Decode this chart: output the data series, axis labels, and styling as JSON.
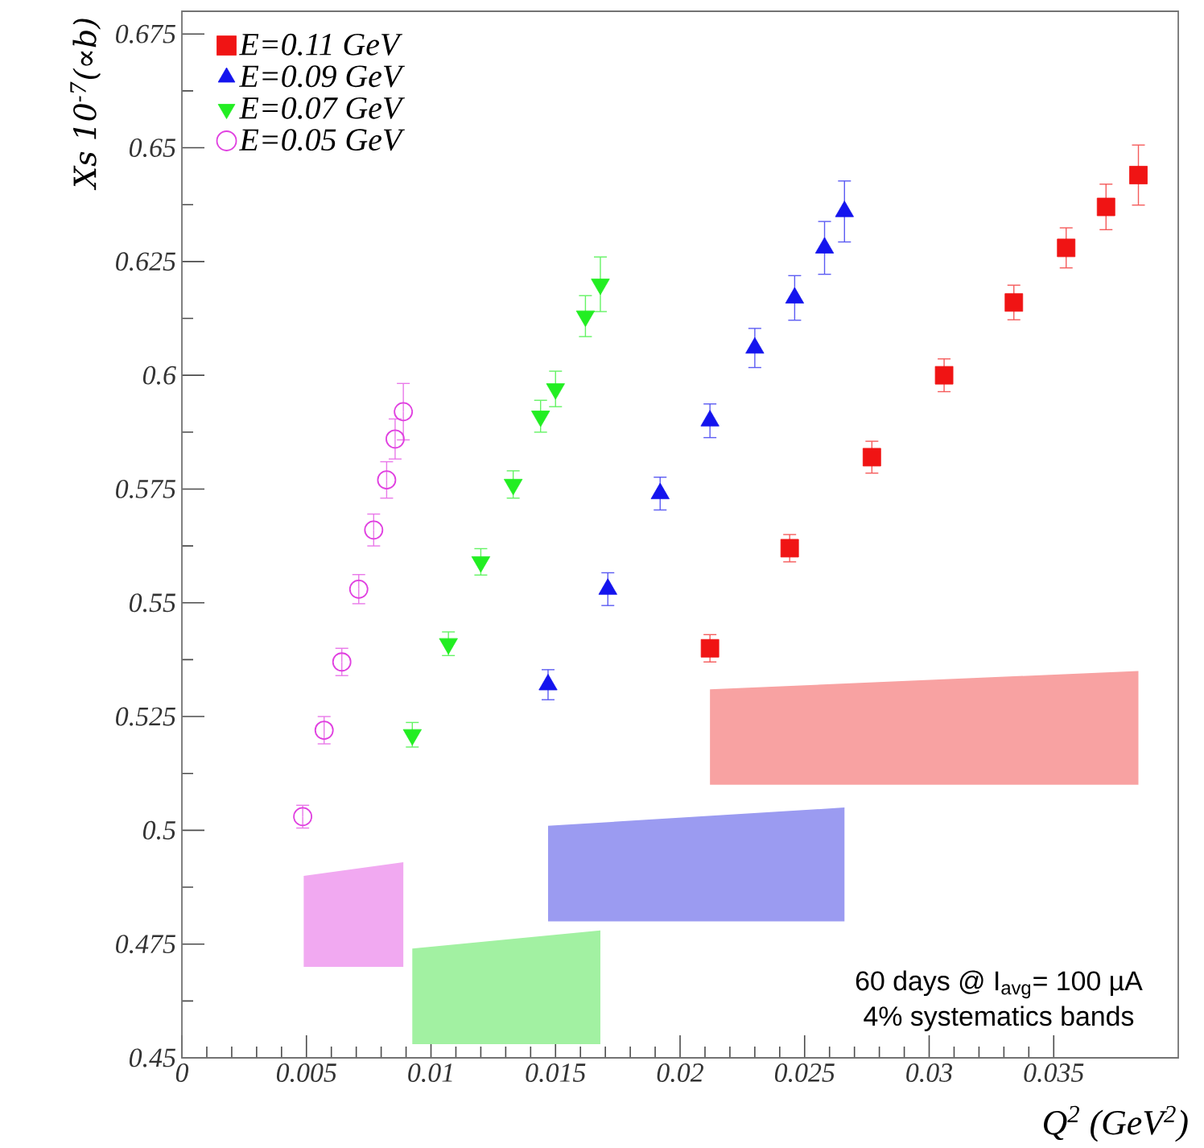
{
  "chart_data": {
    "type": "scatter",
    "ylabel": "Xs 10$^{-7}$(∝b)",
    "xlabel": "Q$^{2}$ (GeV$^{2}$)",
    "xlim": [
      0,
      0.04
    ],
    "xticks": [
      0,
      0.005,
      0.01,
      0.015,
      0.02,
      0.025,
      0.03,
      0.035
    ],
    "ylim": [
      0.45,
      0.68
    ],
    "yticks": [
      0.45,
      0.475,
      0.5,
      0.525,
      0.55,
      0.575,
      0.6,
      0.625,
      0.65,
      0.675
    ],
    "legend": "top left",
    "series": [
      {
        "type": "scatter",
        "name": "E=0.11 GeV",
        "color": "#f01414",
        "marker": "square",
        "x": [
          0.0212,
          0.0244,
          0.0277,
          0.0306,
          0.0334,
          0.0355,
          0.0371,
          0.0384
        ],
        "values": [
          0.54,
          0.562,
          0.582,
          0.6,
          0.616,
          0.628,
          0.637,
          0.644
        ],
        "errors": [
          0.003,
          0.003,
          0.0035,
          0.0036,
          0.0038,
          0.0044,
          0.005,
          0.0066
        ]
      },
      {
        "type": "scatter",
        "name": "E=0.09 GeV",
        "color": "#1414ee",
        "marker": "triangle",
        "x": [
          0.0147,
          0.0171,
          0.0192,
          0.0212,
          0.023,
          0.0246,
          0.0258,
          0.0266
        ],
        "values": [
          0.532,
          0.553,
          0.574,
          0.59,
          0.606,
          0.617,
          0.628,
          0.636
        ],
        "errors": [
          0.0033,
          0.0036,
          0.0036,
          0.0037,
          0.0043,
          0.0049,
          0.0058,
          0.0067
        ]
      },
      {
        "type": "scatter",
        "name": "E=0.07 GeV",
        "color": "#22ee22",
        "marker": "triangle-down",
        "x": [
          0.00925,
          0.0107,
          0.012,
          0.0133,
          0.0144,
          0.015,
          0.0162,
          0.0168
        ],
        "values": [
          0.521,
          0.541,
          0.559,
          0.576,
          0.591,
          0.597,
          0.613,
          0.62
        ],
        "errors": [
          0.0027,
          0.0026,
          0.0029,
          0.003,
          0.0035,
          0.0039,
          0.0045,
          0.006
        ]
      },
      {
        "type": "scatter",
        "name": "E=0.05 GeV",
        "color": "#e040e0",
        "marker": "circle-open",
        "x": [
          0.00485,
          0.00571,
          0.00642,
          0.0071,
          0.0077,
          0.00822,
          0.00856,
          0.00889
        ],
        "values": [
          0.503,
          0.522,
          0.537,
          0.553,
          0.566,
          0.577,
          0.586,
          0.592
        ],
        "errors": [
          0.0025,
          0.003,
          0.003,
          0.0032,
          0.0035,
          0.004,
          0.0044,
          0.0062
        ]
      },
      {
        "type": "area",
        "color": "#f8a2a2",
        "x": [
          0.0212,
          0.0384
        ],
        "values": [
          null,
          null
        ],
        "lower": [
          0.51,
          0.51
        ],
        "upper": [
          0.531,
          0.535
        ]
      },
      {
        "type": "area",
        "color": "#9b9bf1",
        "x": [
          0.0147,
          0.0266
        ],
        "values": [
          null,
          null
        ],
        "lower": [
          0.48,
          0.48
        ],
        "upper": [
          0.501,
          0.505
        ]
      },
      {
        "type": "area",
        "color": "#a2f1a2",
        "x": [
          0.00925,
          0.0168
        ],
        "values": [
          null,
          null
        ],
        "lower": [
          0.453,
          0.453
        ],
        "upper": [
          0.474,
          0.478
        ]
      },
      {
        "type": "area",
        "color": "#f1a9f1",
        "x": [
          0.00489,
          0.00889
        ],
        "values": [
          null,
          null
        ],
        "lower": [
          0.47,
          0.47
        ],
        "upper": [
          0.49,
          0.493
        ]
      }
    ],
    "annotations": [
      "60 days @ I$_{avg}$= 100 µA",
      "4% systematics bands"
    ]
  }
}
